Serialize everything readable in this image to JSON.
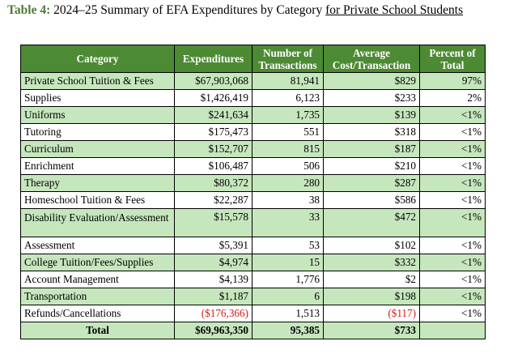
{
  "title": {
    "label": "Table 4:",
    "text": "2024–25 Summary of EFA Expenditures by Category",
    "underlined": "for Private School Students"
  },
  "headers": {
    "category": "Category",
    "expenditures": "Expenditures",
    "transactions_1": "Number of",
    "transactions_2": "Transactions",
    "avg_1": "Average",
    "avg_2": "Cost/Transaction",
    "pct_1": "Percent of",
    "pct_2": "Total"
  },
  "rows": [
    {
      "category": "Private School Tuition & Fees",
      "expenditures": "$67,903,068",
      "transactions": "81,941",
      "avg": "$829",
      "pct": "97%"
    },
    {
      "category": "Supplies",
      "expenditures": "$1,426,419",
      "transactions": "6,123",
      "avg": "$233",
      "pct": "2%"
    },
    {
      "category": "Uniforms",
      "expenditures": "$241,634",
      "transactions": "1,735",
      "avg": "$139",
      "pct": "<1%"
    },
    {
      "category": "Tutoring",
      "expenditures": "$175,473",
      "transactions": "551",
      "avg": "$318",
      "pct": "<1%"
    },
    {
      "category": "Curriculum",
      "expenditures": "$152,707",
      "transactions": "815",
      "avg": "$187",
      "pct": "<1%"
    },
    {
      "category": "Enrichment",
      "expenditures": "$106,487",
      "transactions": "506",
      "avg": "$210",
      "pct": "<1%"
    },
    {
      "category": "Therapy",
      "expenditures": "$80,372",
      "transactions": "280",
      "avg": "$287",
      "pct": "<1%"
    },
    {
      "category": "Homeschool Tuition & Fees",
      "expenditures": "$22,287",
      "transactions": "38",
      "avg": "$586",
      "pct": "<1%"
    },
    {
      "category": "Disability Evaluation/Assessment",
      "expenditures": "$15,578",
      "transactions": "33",
      "avg": "$472",
      "pct": "<1%"
    },
    {
      "category": "Assessment",
      "expenditures": "$5,391",
      "transactions": "53",
      "avg": "$102",
      "pct": "<1%"
    },
    {
      "category": "College Tuition/Fees/Supplies",
      "expenditures": "$4,974",
      "transactions": "15",
      "avg": "$332",
      "pct": "<1%"
    },
    {
      "category": "Account Management",
      "expenditures": "$4,139",
      "transactions": "1,776",
      "avg": "$2",
      "pct": "<1%"
    },
    {
      "category": "Transportation",
      "expenditures": "$1,187",
      "transactions": "6",
      "avg": "$198",
      "pct": "<1%"
    },
    {
      "category": "Refunds/Cancellations",
      "expenditures": "($176,366)",
      "transactions": "1,513",
      "avg": "($117)",
      "pct": "<1%"
    }
  ],
  "total": {
    "category": "Total",
    "expenditures": "$69,963,350",
    "transactions": "95,385",
    "avg": "$733",
    "pct": ""
  },
  "colors": {
    "header_bg": "#4c8a33",
    "band_bg": "#c6e7bd",
    "negative": "#d11a1a",
    "title_label": "#4e7a3a"
  }
}
